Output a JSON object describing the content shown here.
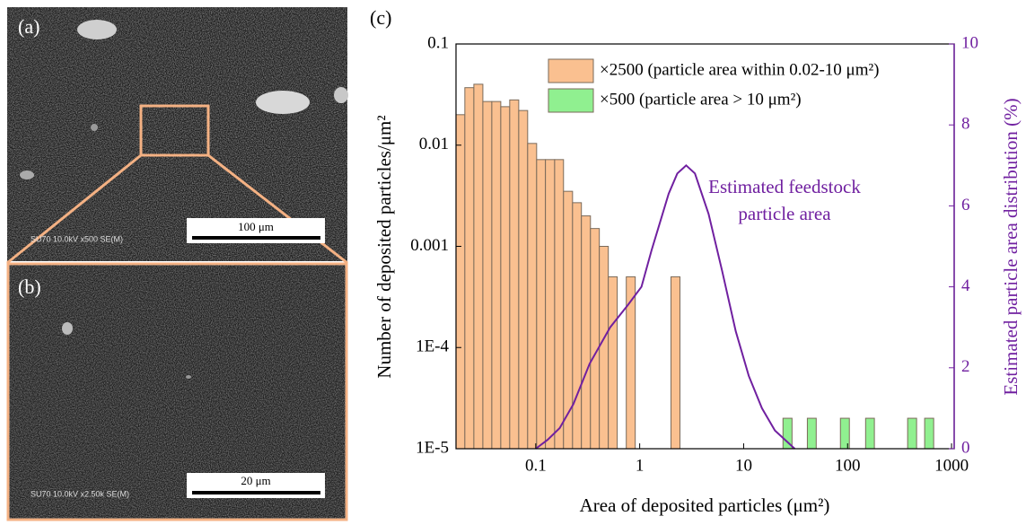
{
  "panels": {
    "a": {
      "label": "(a)",
      "info": "SU70 10.0kV x500 SE(M)",
      "scale": "100 μm"
    },
    "b": {
      "label": "(b)",
      "info": "SU70 10.0kV x2.50k SE(M)",
      "scale": "20 μm"
    },
    "c": {
      "label": "(c)"
    }
  },
  "chart_data": {
    "type": "histogram",
    "xlabel": "Area of deposited particles (μm²)",
    "ylabel": "Number of deposited particles/μm²",
    "y2label": "Estimated particle area distribution (%)",
    "annotation": [
      "Estimated feedstock",
      "particle area"
    ],
    "xscale": "log",
    "yscale": "log",
    "xlim": [
      0.0171,
      1060
    ],
    "ylim": [
      1e-05,
      0.1
    ],
    "y2lim": [
      0,
      10
    ],
    "xticks": [
      0.1,
      1,
      10,
      100,
      1000
    ],
    "yticks": [
      {
        "value": 1e-05,
        "label": "1E-5"
      },
      {
        "value": 0.0001,
        "label": "1E-4"
      },
      0.001,
      0.01,
      0.1
    ],
    "y2ticks": [
      0,
      2,
      4,
      6,
      8,
      10
    ],
    "legend": "top-left",
    "series": [
      {
        "type": "histogram",
        "name": "×2500 (particle area within 0.02-10 μm²)",
        "color": "#fac090",
        "bins": [
          0.0171,
          0.0208,
          0.0254,
          0.031,
          0.0378,
          0.0461,
          0.0562,
          0.0686,
          0.0836,
          0.102,
          0.124,
          0.152,
          0.185,
          0.226,
          0.275,
          0.336,
          0.409,
          0.499,
          0.608,
          0.743,
          0.906,
          1.1,
          1.35,
          1.64,
          2.0,
          2.44
        ],
        "values": [
          0.02,
          0.037,
          0.04,
          0.027,
          0.027,
          0.024,
          0.028,
          0.022,
          0.0104,
          0.0072,
          0.0072,
          0.0072,
          0.0035,
          0.0027,
          0.002,
          0.0015,
          0.001,
          0.0005,
          null,
          0.0005,
          null,
          null,
          null,
          null,
          0.0005
        ]
      },
      {
        "type": "histogram",
        "name": "×500 (particle area > 10 μm²)",
        "color": "#90f090",
        "bins": [
          23.9,
          29.2,
          41.0,
          49.9,
          85.3,
          104,
          149,
          181,
          378,
          461,
          551,
          673
        ],
        "values": [
          2e-05,
          null,
          2e-05,
          null,
          2e-05,
          null,
          2e-05,
          null,
          2e-05,
          null,
          2e-05
        ]
      },
      {
        "type": "line",
        "axis": "y2",
        "color": "#7020a0",
        "x": [
          0.1,
          0.13,
          0.17,
          0.23,
          0.33,
          0.52,
          0.77,
          1.04,
          1.3,
          1.9,
          2.3,
          2.8,
          3.4,
          4.6,
          6.2,
          8.4,
          11.2,
          15,
          20,
          31
        ],
        "values": [
          0,
          0.22,
          0.51,
          1.1,
          2.1,
          3.0,
          3.55,
          4.0,
          4.9,
          6.3,
          6.8,
          7.0,
          6.8,
          5.8,
          4.4,
          2.9,
          1.8,
          1.0,
          0.45,
          0
        ]
      }
    ]
  }
}
